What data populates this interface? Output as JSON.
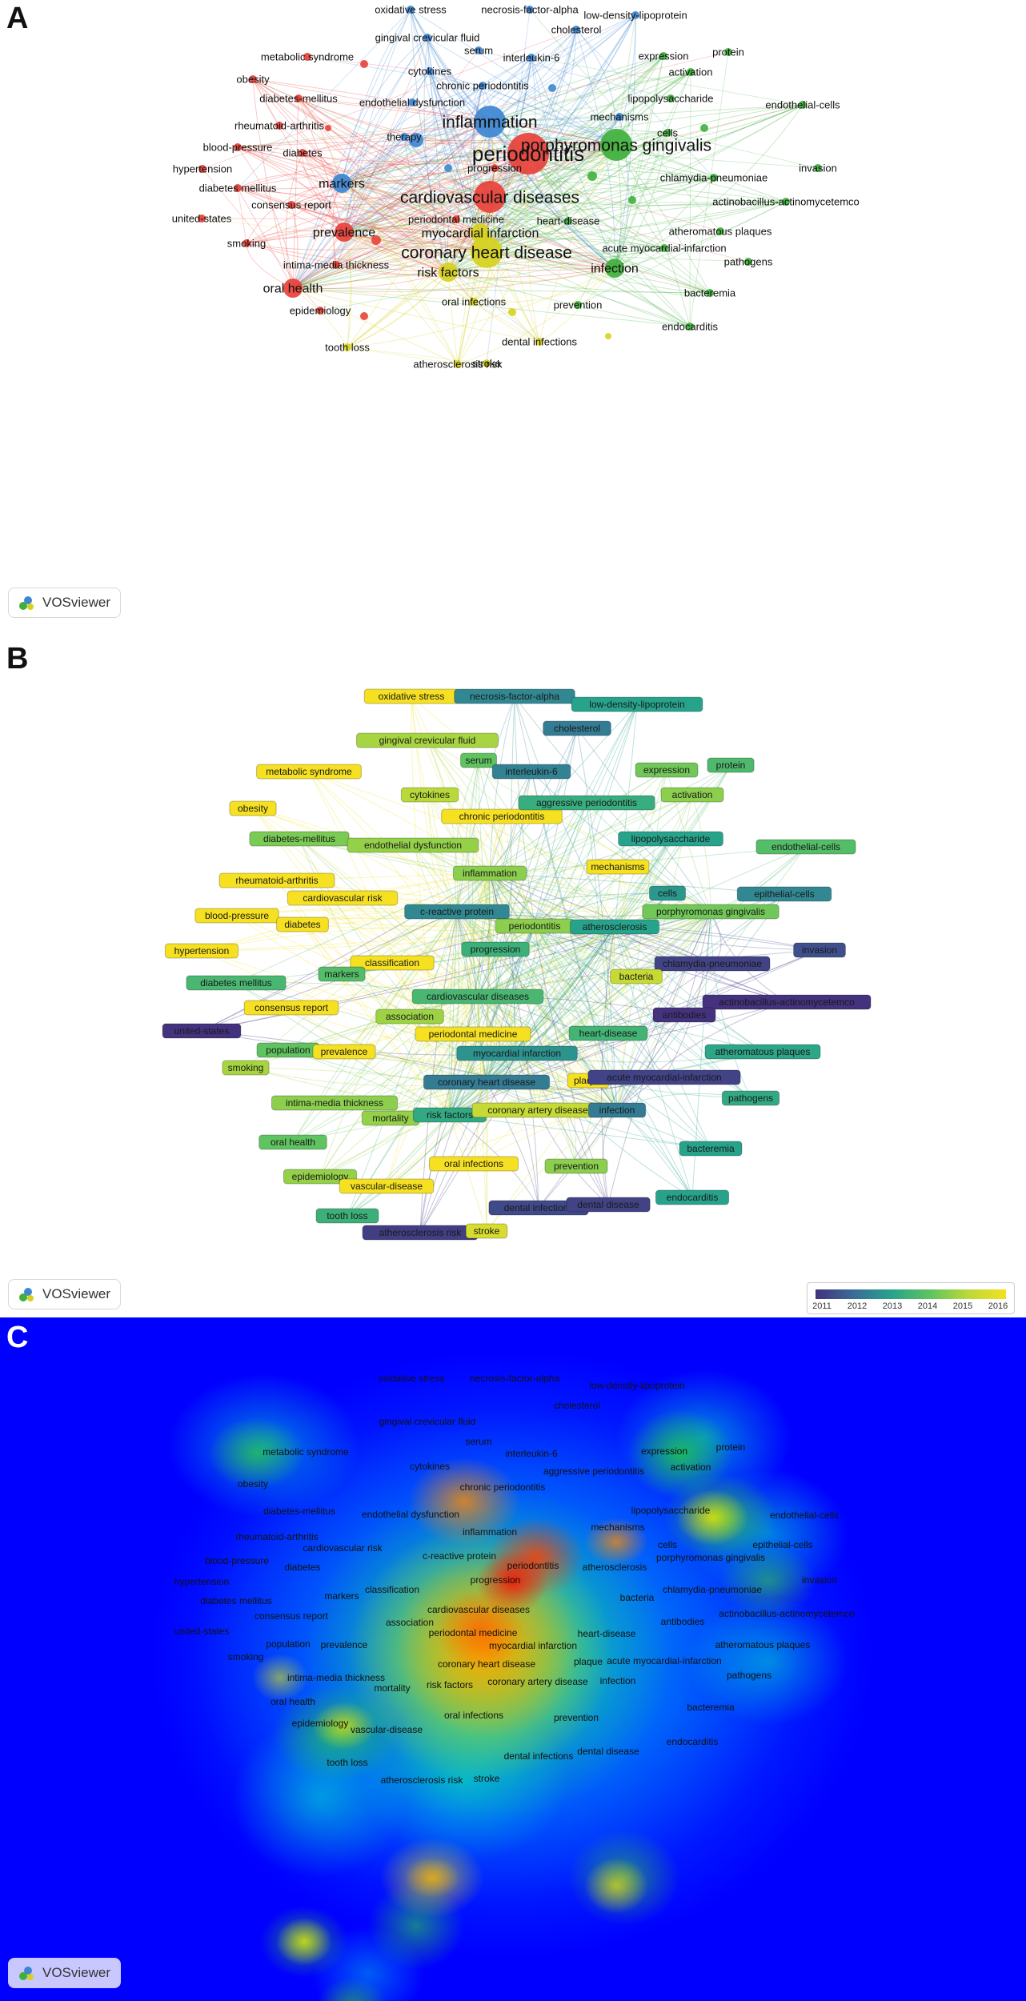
{
  "panels": {
    "a_letter": "A",
    "b_letter": "B",
    "c_letter": "C"
  },
  "vosviewer_label": "VOSviewer",
  "legend": {
    "years": [
      "2011",
      "2012",
      "2013",
      "2014",
      "2015",
      "2016"
    ]
  },
  "colors": {
    "red": "#e8413a",
    "blue": "#3d86d2",
    "green": "#3fb03c",
    "yellow": "#d7d11e",
    "heat_background": "#0000ff"
  },
  "panel_a": {
    "nodes": [
      {
        "label": "periodontitis",
        "cluster": "red",
        "size": "huge"
      },
      {
        "label": "cardiovascular diseases",
        "cluster": "red",
        "size": "large"
      },
      {
        "label": "inflammation",
        "cluster": "blue",
        "size": "large"
      },
      {
        "label": "porphyromonas gingivalis",
        "cluster": "green",
        "size": "large"
      },
      {
        "label": "coronary heart disease",
        "cluster": "yellow",
        "size": "large"
      },
      {
        "label": "myocardial infarction",
        "cluster": "yellow",
        "size": "medium"
      },
      {
        "label": "risk factors",
        "cluster": "yellow",
        "size": "medium"
      },
      {
        "label": "infection",
        "cluster": "green",
        "size": "medium"
      },
      {
        "label": "oral health",
        "cluster": "red",
        "size": "medium"
      },
      {
        "label": "prevalence",
        "cluster": "red",
        "size": "medium"
      },
      {
        "label": "markers",
        "cluster": "blue",
        "size": "medium"
      },
      {
        "label": "therapy",
        "cluster": "blue",
        "size": "small"
      },
      {
        "label": "progression",
        "cluster": "red",
        "size": "small"
      },
      {
        "label": "periodontal medicine",
        "cluster": "red",
        "size": "small"
      },
      {
        "label": "heart-disease",
        "cluster": "green",
        "size": "small"
      },
      {
        "label": "acute myocardial-infarction",
        "cluster": "green",
        "size": "small"
      },
      {
        "label": "pathogens",
        "cluster": "green",
        "size": "small"
      },
      {
        "label": "bacteremia",
        "cluster": "green",
        "size": "small"
      },
      {
        "label": "endocarditis",
        "cluster": "green",
        "size": "small"
      },
      {
        "label": "atheromatous plaques",
        "cluster": "green",
        "size": "small"
      },
      {
        "label": "actinobacillus-actinomycetemco",
        "cluster": "green",
        "size": "small"
      },
      {
        "label": "chlamydia-pneumoniae",
        "cluster": "green",
        "size": "small"
      },
      {
        "label": "invasion",
        "cluster": "green",
        "size": "small"
      },
      {
        "label": "cells",
        "cluster": "green",
        "size": "small"
      },
      {
        "label": "endothelial-cells",
        "cluster": "green",
        "size": "small"
      },
      {
        "label": "lipopolysaccharide",
        "cluster": "green",
        "size": "small"
      },
      {
        "label": "activation",
        "cluster": "green",
        "size": "small"
      },
      {
        "label": "expression",
        "cluster": "green",
        "size": "small"
      },
      {
        "label": "protein",
        "cluster": "green",
        "size": "small"
      },
      {
        "label": "mechanisms",
        "cluster": "blue",
        "size": "small"
      },
      {
        "label": "chronic periodontitis",
        "cluster": "blue",
        "size": "small"
      },
      {
        "label": "endothelial dysfunction",
        "cluster": "blue",
        "size": "small"
      },
      {
        "label": "cytokines",
        "cluster": "blue",
        "size": "small"
      },
      {
        "label": "interleukin-6",
        "cluster": "blue",
        "size": "small"
      },
      {
        "label": "serum",
        "cluster": "blue",
        "size": "small"
      },
      {
        "label": "gingival crevicular fluid",
        "cluster": "blue",
        "size": "small"
      },
      {
        "label": "oxidative stress",
        "cluster": "blue",
        "size": "small"
      },
      {
        "label": "necrosis-factor-alpha",
        "cluster": "blue",
        "size": "small"
      },
      {
        "label": "low-density-lipoprotein",
        "cluster": "blue",
        "size": "small"
      },
      {
        "label": "cholesterol",
        "cluster": "blue",
        "size": "small"
      },
      {
        "label": "metabolic syndrome",
        "cluster": "red",
        "size": "small"
      },
      {
        "label": "obesity",
        "cluster": "red",
        "size": "small"
      },
      {
        "label": "diabetes-mellitus",
        "cluster": "red",
        "size": "small"
      },
      {
        "label": "rheumatoid-arthritis",
        "cluster": "red",
        "size": "small"
      },
      {
        "label": "blood-pressure",
        "cluster": "red",
        "size": "small"
      },
      {
        "label": "diabetes",
        "cluster": "red",
        "size": "small"
      },
      {
        "label": "hypertension",
        "cluster": "red",
        "size": "small"
      },
      {
        "label": "diabetes mellitus",
        "cluster": "red",
        "size": "small"
      },
      {
        "label": "consensus report",
        "cluster": "red",
        "size": "small"
      },
      {
        "label": "united-states",
        "cluster": "red",
        "size": "small"
      },
      {
        "label": "smoking",
        "cluster": "red",
        "size": "small"
      },
      {
        "label": "intima-media thickness",
        "cluster": "red",
        "size": "small"
      },
      {
        "label": "epidemiology",
        "cluster": "red",
        "size": "small"
      },
      {
        "label": "tooth loss",
        "cluster": "yellow",
        "size": "small"
      },
      {
        "label": "oral infections",
        "cluster": "yellow",
        "size": "small"
      },
      {
        "label": "prevention",
        "cluster": "green",
        "size": "small"
      },
      {
        "label": "dental infections",
        "cluster": "yellow",
        "size": "small"
      },
      {
        "label": "atherosclerosis risk",
        "cluster": "yellow",
        "size": "small"
      },
      {
        "label": "stroke",
        "cluster": "yellow",
        "size": "small"
      }
    ]
  },
  "panel_b": {
    "labels": [
      {
        "label": "oxidative stress",
        "year": "2016"
      },
      {
        "label": "necrosis-factor-alpha",
        "year": "2012.5"
      },
      {
        "label": "low-density-lipoprotein",
        "year": "2013"
      },
      {
        "label": "cholesterol",
        "year": "2012.3"
      },
      {
        "label": "gingival crevicular fluid",
        "year": "2014.8"
      },
      {
        "label": "serum",
        "year": "2014"
      },
      {
        "label": "interleukin-6",
        "year": "2012.4"
      },
      {
        "label": "expression",
        "year": "2014.2"
      },
      {
        "label": "protein",
        "year": "2013.7"
      },
      {
        "label": "metabolic syndrome",
        "year": "2016"
      },
      {
        "label": "cytokines",
        "year": "2015"
      },
      {
        "label": "chronic periodontitis",
        "year": "2016"
      },
      {
        "label": "aggressive periodontitis",
        "year": "2013.3"
      },
      {
        "label": "activation",
        "year": "2014.5"
      },
      {
        "label": "obesity",
        "year": "2016"
      },
      {
        "label": "diabetes-mellitus",
        "year": "2014.3"
      },
      {
        "label": "endothelial dysfunction",
        "year": "2014.6"
      },
      {
        "label": "lipopolysaccharide",
        "year": "2013"
      },
      {
        "label": "endothelial-cells",
        "year": "2013.8"
      },
      {
        "label": "mechanisms",
        "year": "2016"
      },
      {
        "label": "inflammation",
        "year": "2014.5"
      },
      {
        "label": "rheumatoid-arthritis",
        "year": "2016"
      },
      {
        "label": "cardiovascular risk",
        "year": "2016"
      },
      {
        "label": "cells",
        "year": "2012.8"
      },
      {
        "label": "epithelial-cells",
        "year": "2012.5"
      },
      {
        "label": "blood-pressure",
        "year": "2016"
      },
      {
        "label": "diabetes",
        "year": "2016"
      },
      {
        "label": "c-reactive protein",
        "year": "2012.5"
      },
      {
        "label": "periodontitis",
        "year": "2014.5"
      },
      {
        "label": "atherosclerosis",
        "year": "2013"
      },
      {
        "label": "porphyromonas gingivalis",
        "year": "2014.2"
      },
      {
        "label": "hypertension",
        "year": "2016"
      },
      {
        "label": "classification",
        "year": "2016"
      },
      {
        "label": "progression",
        "year": "2013.4"
      },
      {
        "label": "chlamydia-pneumoniae",
        "year": "2011.3"
      },
      {
        "label": "invasion",
        "year": "2011.5"
      },
      {
        "label": "diabetes mellitus",
        "year": "2013.6"
      },
      {
        "label": "markers",
        "year": "2013.8"
      },
      {
        "label": "bacteria",
        "year": "2015.2"
      },
      {
        "label": "cardiovascular diseases",
        "year": "2013.6"
      },
      {
        "label": "actinobacillus-actinomycetemco",
        "year": "2011"
      },
      {
        "label": "consensus report",
        "year": "2016"
      },
      {
        "label": "antibodies",
        "year": "2011"
      },
      {
        "label": "united-states",
        "year": "2011"
      },
      {
        "label": "association",
        "year": "2014.7"
      },
      {
        "label": "periodontal medicine",
        "year": "2016"
      },
      {
        "label": "heart-disease",
        "year": "2013.5"
      },
      {
        "label": "atheromatous plaques",
        "year": "2013.1"
      },
      {
        "label": "population",
        "year": "2014"
      },
      {
        "label": "prevalence",
        "year": "2016"
      },
      {
        "label": "myocardial infarction",
        "year": "2012.7"
      },
      {
        "label": "smoking",
        "year": "2014.8"
      },
      {
        "label": "coronary heart disease",
        "year": "2012.3"
      },
      {
        "label": "plaque",
        "year": "2016"
      },
      {
        "label": "acute myocardial-infarction",
        "year": "2011.3"
      },
      {
        "label": "pathogens",
        "year": "2013.2"
      },
      {
        "label": "intima-media thickness",
        "year": "2014.5"
      },
      {
        "label": "mortality",
        "year": "2014.6"
      },
      {
        "label": "risk factors",
        "year": "2013.2"
      },
      {
        "label": "coronary artery disease",
        "year": "2015.2"
      },
      {
        "label": "infection",
        "year": "2012.3"
      },
      {
        "label": "oral health",
        "year": "2014"
      },
      {
        "label": "bacteremia",
        "year": "2013"
      },
      {
        "label": "oral infections",
        "year": "2016"
      },
      {
        "label": "prevention",
        "year": "2014.5"
      },
      {
        "label": "epidemiology",
        "year": "2014.6"
      },
      {
        "label": "vascular-disease",
        "year": "2016"
      },
      {
        "label": "endocarditis",
        "year": "2013"
      },
      {
        "label": "tooth loss",
        "year": "2013.4"
      },
      {
        "label": "dental infections",
        "year": "2011.4"
      },
      {
        "label": "dental disease",
        "year": "2011.3"
      },
      {
        "label": "atherosclerosis risk",
        "year": "2011.2"
      },
      {
        "label": "stroke",
        "year": "2015.5"
      }
    ]
  },
  "panel_c": {
    "labels": [
      "oxidative stress",
      "necrosis-factor-alpha",
      "low-density-lipoprotein",
      "cholesterol",
      "gingival crevicular fluid",
      "serum",
      "interleukin-6",
      "expression",
      "protein",
      "metabolic syndrome",
      "cytokines",
      "aggressive periodontitis",
      "activation",
      "obesity",
      "chronic periodontitis",
      "diabetes-mellitus",
      "endothelial dysfunction",
      "lipopolysaccharide",
      "endothelial-cells",
      "mechanisms",
      "inflammation",
      "rheumatoid-arthritis",
      "cells",
      "epithelial-cells",
      "cardiovascular risk",
      "c-reactive protein",
      "periodontitis",
      "atherosclerosis",
      "porphyromonas gingivalis",
      "blood-pressure",
      "diabetes",
      "progression",
      "hypertension",
      "classification",
      "chlamydia-pneumoniae",
      "invasion",
      "diabetes mellitus",
      "markers",
      "bacteria",
      "cardiovascular diseases",
      "actinobacillus-actinomycetemco",
      "consensus report",
      "antibodies",
      "united-states",
      "association",
      "periodontal medicine",
      "heart-disease",
      "myocardial infarction",
      "atheromatous plaques",
      "population",
      "prevalence",
      "smoking",
      "coronary heart disease",
      "plaque",
      "acute myocardial-infarction",
      "pathogens",
      "intima-media thickness",
      "mortality",
      "risk factors",
      "coronary artery disease",
      "infection",
      "oral health",
      "bacteremia",
      "oral infections",
      "prevention",
      "epidemiology",
      "vascular-disease",
      "endocarditis",
      "dental infections",
      "dental disease",
      "tooth loss",
      "atherosclerosis risk",
      "stroke"
    ]
  }
}
